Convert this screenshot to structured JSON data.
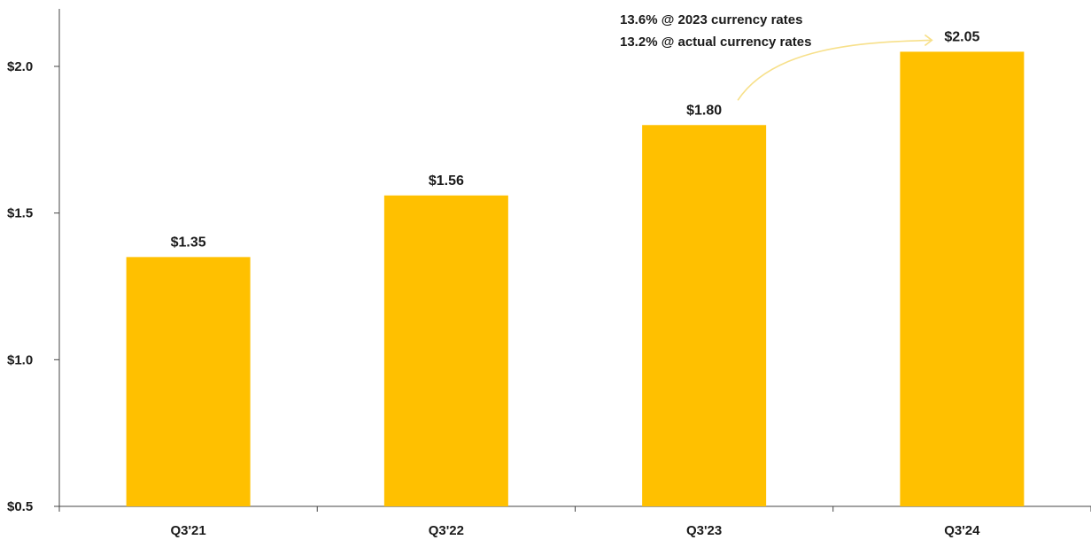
{
  "chart_data": {
    "type": "bar",
    "categories": [
      "Q3'21",
      "Q3'22",
      "Q3'23",
      "Q3'24"
    ],
    "values": [
      1.35,
      1.56,
      1.8,
      2.05
    ],
    "data_labels": [
      "$1.35",
      "$1.56",
      "$1.80",
      "$2.05"
    ],
    "title": "",
    "xlabel": "",
    "ylabel": "",
    "ylim": [
      0.5,
      2.2
    ],
    "yticks": [
      0.5,
      1.0,
      1.5,
      2.0
    ],
    "ytick_labels": [
      "$0.5",
      "$1.0",
      "$1.5",
      "$2.0"
    ],
    "grid": false,
    "legend": false,
    "bar_color": "#FFC000",
    "annotation": {
      "lines": [
        "13.6% @ 2023 currency rates",
        "13.2% @ actual currency rates"
      ],
      "from_category": "Q3'23",
      "to_category": "Q3'24",
      "arrow_color": "#F7E08A"
    }
  }
}
